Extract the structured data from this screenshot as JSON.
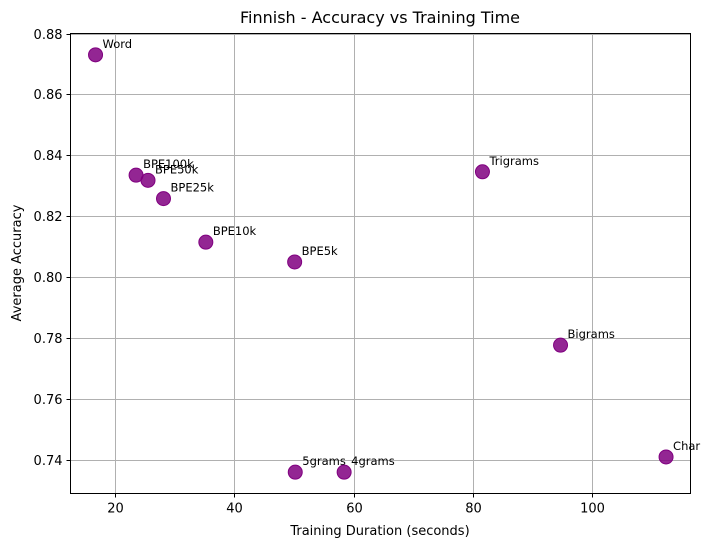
{
  "chart_data": {
    "type": "scatter",
    "title": "Finnish - Accuracy vs Training Time",
    "xlabel": "Training Duration (seconds)",
    "ylabel": "Average Accuracy",
    "xlim": [
      12.5,
      116.5
    ],
    "ylim": [
      0.729,
      0.88
    ],
    "xticks": [
      20,
      40,
      60,
      80,
      100
    ],
    "yticks": [
      0.74,
      0.76,
      0.78,
      0.8,
      0.82,
      0.84,
      0.86,
      0.88
    ],
    "grid": true,
    "marker_color": "#800080",
    "points": [
      {
        "label": "Word",
        "x": 16.7,
        "y": 0.873
      },
      {
        "label": "BPE100k",
        "x": 23.5,
        "y": 0.8335
      },
      {
        "label": "BPE50k",
        "x": 25.5,
        "y": 0.8318
      },
      {
        "label": "BPE25k",
        "x": 28.1,
        "y": 0.8258
      },
      {
        "label": "BPE10k",
        "x": 35.2,
        "y": 0.8115
      },
      {
        "label": "BPE5k",
        "x": 50.1,
        "y": 0.805
      },
      {
        "label": "Trigrams",
        "x": 81.6,
        "y": 0.8346
      },
      {
        "label": "Bigrams",
        "x": 94.7,
        "y": 0.7777
      },
      {
        "label": "5grams",
        "x": 50.2,
        "y": 0.736
      },
      {
        "label": "4grams",
        "x": 58.4,
        "y": 0.736
      },
      {
        "label": "Char",
        "x": 112.4,
        "y": 0.741
      }
    ]
  }
}
